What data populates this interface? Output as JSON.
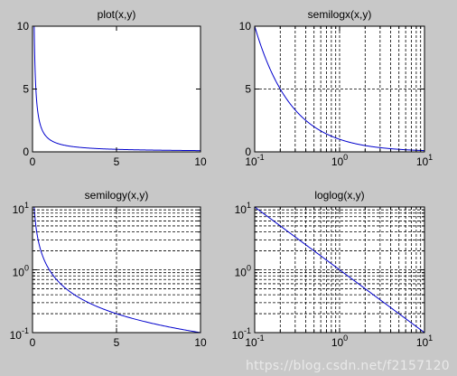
{
  "figure": {
    "background": "#c8c8c8",
    "line_color": "#0000cc"
  },
  "chart_data": [
    {
      "type": "line",
      "title": "plot(x,y)",
      "xscale": "linear",
      "yscale": "linear",
      "xlim": [
        0,
        10
      ],
      "ylim": [
        0,
        10
      ],
      "xticks": [
        0,
        5,
        10
      ],
      "yticks": [
        0,
        5,
        10
      ],
      "xtick_labels": [
        "0",
        "5",
        "10"
      ],
      "ytick_labels": [
        "0",
        "5",
        "10"
      ],
      "grid": false,
      "series": [
        {
          "x": [
            0.1,
            0.2,
            0.3,
            0.5,
            0.75,
            1,
            1.5,
            2,
            3,
            4,
            5,
            6,
            7,
            8,
            9,
            10
          ],
          "y": [
            10,
            5,
            3.333,
            2,
            1.333,
            1,
            0.667,
            0.5,
            0.333,
            0.25,
            0.2,
            0.167,
            0.143,
            0.125,
            0.111,
            0.1
          ]
        }
      ]
    },
    {
      "type": "line",
      "title": "semilogx(x,y)",
      "xscale": "log",
      "yscale": "linear",
      "xlim": [
        0.1,
        10
      ],
      "ylim": [
        0,
        10
      ],
      "xticks": [
        0.1,
        1,
        10
      ],
      "yticks": [
        0,
        5,
        10
      ],
      "xtick_labels": [
        {
          "base": "10",
          "exp": "-1"
        },
        {
          "base": "10",
          "exp": "0"
        },
        {
          "base": "10",
          "exp": "1"
        }
      ],
      "ytick_labels": [
        "0",
        "5",
        "10"
      ],
      "grid": true,
      "series": [
        {
          "x": [
            0.1,
            0.2,
            0.3,
            0.5,
            0.75,
            1,
            1.5,
            2,
            3,
            4,
            5,
            6,
            7,
            8,
            9,
            10
          ],
          "y": [
            10,
            5,
            3.333,
            2,
            1.333,
            1,
            0.667,
            0.5,
            0.333,
            0.25,
            0.2,
            0.167,
            0.143,
            0.125,
            0.111,
            0.1
          ]
        }
      ]
    },
    {
      "type": "line",
      "title": "semilogy(x,y)",
      "xscale": "linear",
      "yscale": "log",
      "xlim": [
        0,
        10
      ],
      "ylim": [
        0.1,
        10
      ],
      "xticks": [
        0,
        5,
        10
      ],
      "yticks": [
        0.1,
        1,
        10
      ],
      "xtick_labels": [
        "0",
        "5",
        "10"
      ],
      "ytick_labels": [
        {
          "base": "10",
          "exp": "-1"
        },
        {
          "base": "10",
          "exp": "0"
        },
        {
          "base": "10",
          "exp": "1"
        }
      ],
      "grid": true,
      "series": [
        {
          "x": [
            0.1,
            0.2,
            0.3,
            0.5,
            0.75,
            1,
            1.5,
            2,
            3,
            4,
            5,
            6,
            7,
            8,
            9,
            10
          ],
          "y": [
            10,
            5,
            3.333,
            2,
            1.333,
            1,
            0.667,
            0.5,
            0.333,
            0.25,
            0.2,
            0.167,
            0.143,
            0.125,
            0.111,
            0.1
          ]
        }
      ]
    },
    {
      "type": "line",
      "title": "loglog(x,y)",
      "xscale": "log",
      "yscale": "log",
      "xlim": [
        0.1,
        10
      ],
      "ylim": [
        0.1,
        10
      ],
      "xticks": [
        0.1,
        1,
        10
      ],
      "yticks": [
        0.1,
        1,
        10
      ],
      "xtick_labels": [
        {
          "base": "10",
          "exp": "-1"
        },
        {
          "base": "10",
          "exp": "0"
        },
        {
          "base": "10",
          "exp": "1"
        }
      ],
      "ytick_labels": [
        {
          "base": "10",
          "exp": "-1"
        },
        {
          "base": "10",
          "exp": "0"
        },
        {
          "base": "10",
          "exp": "1"
        }
      ],
      "grid": true,
      "series": [
        {
          "x": [
            0.1,
            0.2,
            0.3,
            0.5,
            0.75,
            1,
            1.5,
            2,
            3,
            4,
            5,
            6,
            7,
            8,
            9,
            10
          ],
          "y": [
            10,
            5,
            3.333,
            2,
            1.333,
            1,
            0.667,
            0.5,
            0.333,
            0.25,
            0.2,
            0.167,
            0.143,
            0.125,
            0.111,
            0.1
          ]
        }
      ]
    }
  ],
  "watermark": "https://blog.csdn.net/f2157120"
}
